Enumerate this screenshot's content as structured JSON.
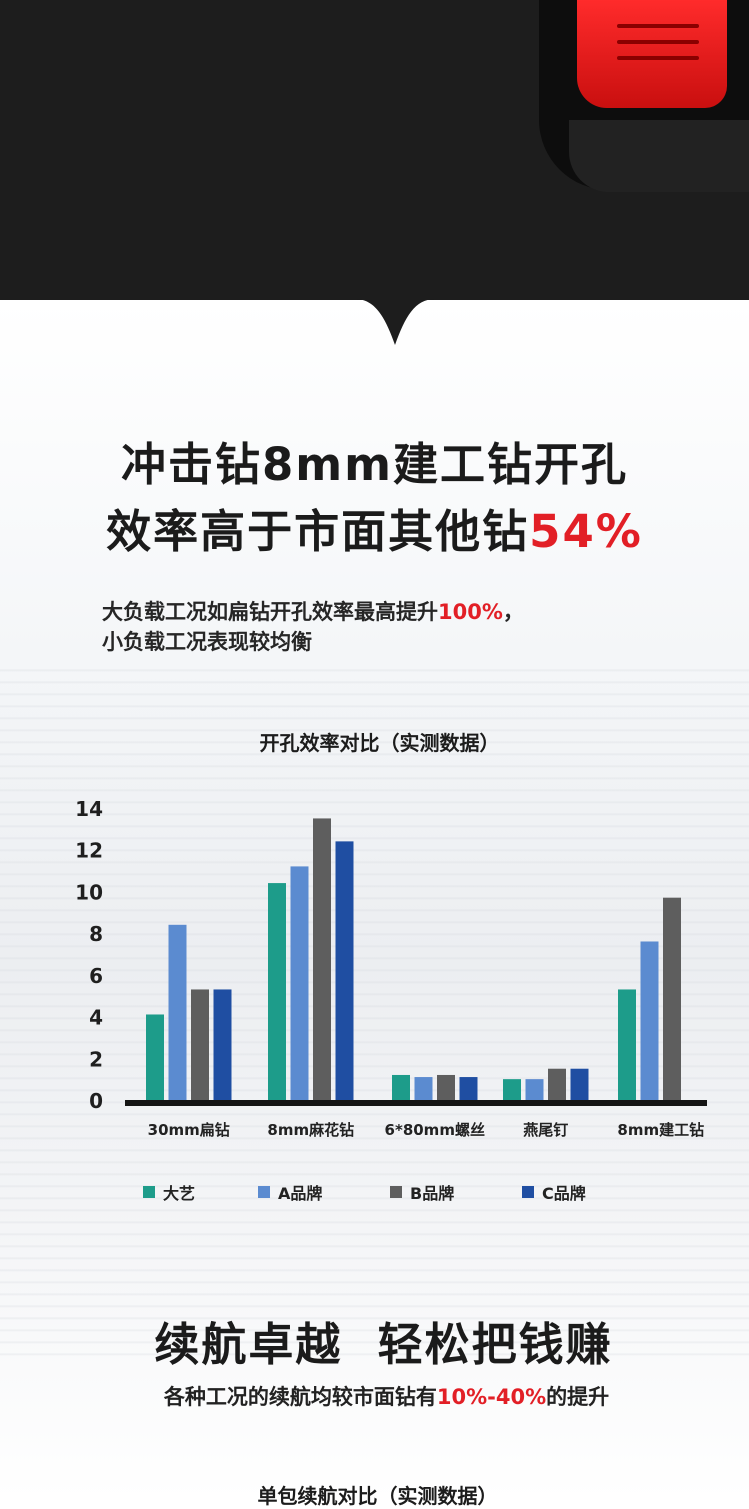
{
  "headline": {
    "line1": "冲击钻8mm建工钻开孔",
    "line2_prefix": "效率高于市面其他钻",
    "line2_highlight": "54%"
  },
  "subline": {
    "line1_prefix": "大负载工况如扁钻开孔效率最高提升",
    "line1_highlight": "100%",
    "line1_suffix": "，",
    "line2": "小负载工况表现较均衡"
  },
  "chart_title": "开孔效率对比（实测数据）",
  "colors": {
    "accent": "#e21f26",
    "dayi": "#1d9c8a",
    "a_brand": "#5b8bd0",
    "b_brand": "#5e5e5e",
    "c_brand": "#1f4ea2"
  },
  "chart_data": {
    "type": "bar",
    "categories": [
      "30mm扁钻",
      "8mm麻花钻",
      "6*80mm螺丝",
      "燕尾钉",
      "8mm建工钻"
    ],
    "series": [
      {
        "name": "大艺",
        "values": [
          4.1,
          10.4,
          1.2,
          1.0,
          5.3
        ]
      },
      {
        "name": "A品牌",
        "values": [
          8.4,
          11.2,
          1.1,
          1.0,
          7.6
        ]
      },
      {
        "name": "B品牌",
        "values": [
          5.3,
          13.5,
          1.2,
          1.5,
          9.7
        ]
      },
      {
        "name": "C品牌",
        "values": [
          5.3,
          12.4,
          1.1,
          1.5,
          null
        ]
      }
    ],
    "yticks": [
      "0",
      "2",
      "4",
      "6",
      "8",
      "10",
      "12",
      "14"
    ],
    "ylim": [
      0,
      14
    ],
    "legend_position": "bottom"
  },
  "legend": [
    {
      "label": "大艺"
    },
    {
      "label": "A品牌"
    },
    {
      "label": "B品牌"
    },
    {
      "label": "C品牌"
    }
  ],
  "headline2": "续航卓越  轻松把钱赚",
  "subline2": {
    "prefix": "各种工况的续航均较市面钻有",
    "highlight": "10%-40%",
    "suffix": "的提升"
  },
  "next_chart_title": "单包续航对比（实测数据）"
}
